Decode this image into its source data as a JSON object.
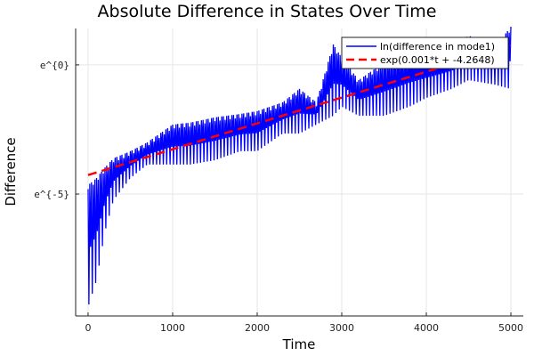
{
  "chart_data": {
    "type": "line",
    "title": "Absolute Difference in States Over Time",
    "xlabel": "Time",
    "ylabel": "Difference",
    "xlim": [
      -147,
      5147
    ],
    "ylim_log": [
      -9.72,
      1.41
    ],
    "xticks": [
      0,
      1000,
      2000,
      3000,
      4000,
      5000
    ],
    "xtick_labels": [
      "0",
      "1000",
      "2000",
      "3000",
      "4000",
      "5000"
    ],
    "yticks_log": [
      0,
      -5
    ],
    "ytick_labels": [
      "e^{0}",
      "e^{-5}"
    ],
    "grid": true,
    "legend_position": "top-right",
    "series": [
      {
        "name": "ln(difference in mode1)",
        "color": "#0000ff",
        "style": "solid oscillating",
        "envelope_t": [
          0,
          100,
          200,
          300,
          500,
          700,
          1000,
          1200,
          1500,
          1800,
          2000,
          2300,
          2500,
          2700,
          2900,
          3000,
          3200,
          3500,
          3800,
          4000,
          4300,
          4500,
          4800,
          5000
        ],
        "upper_log": [
          -4.66,
          -4.38,
          -3.97,
          -3.62,
          -3.34,
          -3.0,
          -2.31,
          -2.24,
          -2.03,
          -1.9,
          -1.79,
          -1.45,
          -0.93,
          -1.45,
          0.79,
          0.28,
          -0.59,
          0.1,
          0.45,
          0.45,
          0.62,
          1.14,
          0.62,
          1.48
        ],
        "lower_log": [
          -9.38,
          -8.34,
          -6.45,
          -5.24,
          -4.38,
          -3.86,
          -3.86,
          -3.86,
          -3.69,
          -3.34,
          -3.34,
          -2.66,
          -2.66,
          -2.31,
          -1.97,
          -1.62,
          -1.97,
          -1.97,
          -1.62,
          -1.28,
          -0.93,
          -0.59,
          -0.76,
          -0.93
        ]
      },
      {
        "name": "exp(0.001*t + -4.2648)",
        "color": "#ff0000",
        "style": "dashed",
        "slope": 0.001,
        "intercept": -4.2648
      }
    ]
  }
}
